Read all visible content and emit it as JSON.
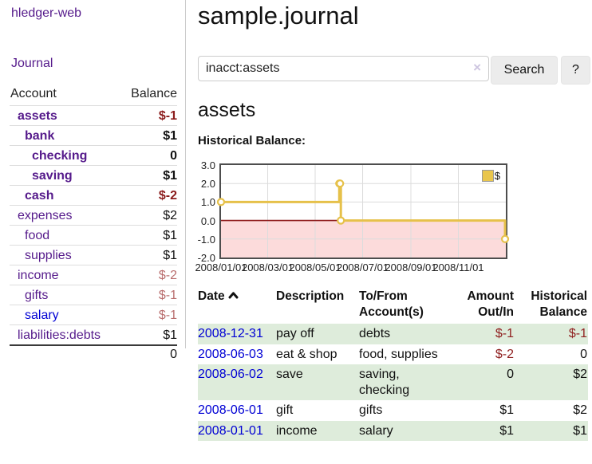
{
  "app": {
    "brand": "hledger-web",
    "nav_journal": "Journal"
  },
  "page": {
    "title": "sample.journal",
    "account_heading": "assets",
    "chart_heading": "Historical Balance:"
  },
  "search": {
    "value": "inacct:assets",
    "clear_icon": "×",
    "button_label": "Search",
    "help_label": "?"
  },
  "sidebar_table": {
    "headers": {
      "account": "Account",
      "balance": "Balance"
    },
    "rows": [
      {
        "account": "assets",
        "balance": "$-1",
        "indent": 1,
        "bold": true,
        "neg": "strong",
        "link": "purple"
      },
      {
        "account": "bank",
        "balance": "$1",
        "indent": 2,
        "bold": true,
        "neg": "none",
        "link": "purple"
      },
      {
        "account": "checking",
        "balance": "0",
        "indent": 3,
        "bold": true,
        "neg": "none",
        "link": "purple"
      },
      {
        "account": "saving",
        "balance": "$1",
        "indent": 3,
        "bold": true,
        "neg": "none",
        "link": "purple"
      },
      {
        "account": "cash",
        "balance": "$-2",
        "indent": 2,
        "bold": true,
        "neg": "strong",
        "link": "purple"
      },
      {
        "account": "expenses",
        "balance": "$2",
        "indent": 1,
        "bold": false,
        "neg": "none",
        "link": "purple"
      },
      {
        "account": "food",
        "balance": "$1",
        "indent": 2,
        "bold": false,
        "neg": "none",
        "link": "purple"
      },
      {
        "account": "supplies",
        "balance": "$1",
        "indent": 2,
        "bold": false,
        "neg": "none",
        "link": "purple"
      },
      {
        "account": "income",
        "balance": "$-2",
        "indent": 1,
        "bold": false,
        "neg": "soft",
        "link": "purple"
      },
      {
        "account": "gifts",
        "balance": "$-1",
        "indent": 2,
        "bold": false,
        "neg": "soft",
        "link": "purple"
      },
      {
        "account": "salary",
        "balance": "$-1",
        "indent": 2,
        "bold": false,
        "neg": "soft",
        "link": "blue"
      },
      {
        "account": "liabilities:debts",
        "balance": "$1",
        "indent": 1,
        "bold": false,
        "neg": "none",
        "link": "purple"
      }
    ],
    "total": "0"
  },
  "chart_data": {
    "type": "line",
    "step": true,
    "title": "Historical Balance",
    "legend": [
      {
        "label": "$",
        "color": "#e9c64d"
      }
    ],
    "legend_position": "top-right",
    "grid": true,
    "x_range": [
      "2008-01-01",
      "2009-01-01"
    ],
    "ylim": [
      -2,
      3
    ],
    "y_ticks": [
      {
        "value": 3,
        "label": "3.0"
      },
      {
        "value": 2,
        "label": "2.0"
      },
      {
        "value": 1,
        "label": "1.0"
      },
      {
        "value": 0,
        "label": "0.0"
      },
      {
        "value": -1,
        "label": "-1.0"
      },
      {
        "value": -2,
        "label": "-2.0"
      }
    ],
    "x_ticks": [
      {
        "date": "2008-01-01",
        "label": "2008/01/01"
      },
      {
        "date": "2008-03-01",
        "label": "2008/03/01"
      },
      {
        "date": "2008-05-01",
        "label": "2008/05/01"
      },
      {
        "date": "2008-07-01",
        "label": "2008/07/01"
      },
      {
        "date": "2008-09-01",
        "label": "2008/09/01"
      },
      {
        "date": "2008-11-01",
        "label": "2008/11/01"
      }
    ],
    "series": [
      {
        "name": "$",
        "color": "#e6c14a",
        "points": [
          {
            "date": "2008-01-01",
            "value": 1
          },
          {
            "date": "2008-06-01",
            "value": 2
          },
          {
            "date": "2008-06-02",
            "value": 2
          },
          {
            "date": "2008-06-03",
            "value": 0
          },
          {
            "date": "2008-12-31",
            "value": -1
          }
        ]
      }
    ],
    "negative_region_color": "#fcdbdb",
    "zero_line_color": "#8e1a1a",
    "grid_color": "#dcdcdc"
  },
  "register_table": {
    "headers": {
      "date": "Date",
      "description": "Description",
      "accounts": "To/From Account(s)",
      "amount": "Amount Out/In",
      "balance": "Historical Balance"
    },
    "sort": {
      "column": "date",
      "direction": "ascending"
    },
    "rows": [
      {
        "date": "2008-12-31",
        "description": "pay off",
        "accounts": "debts",
        "amount": "$-1",
        "balance": "$-1",
        "amount_neg": true,
        "balance_neg": true
      },
      {
        "date": "2008-06-03",
        "description": "eat & shop",
        "accounts": "food, supplies",
        "amount": "$-2",
        "balance": "0",
        "amount_neg": true,
        "balance_neg": false
      },
      {
        "date": "2008-06-02",
        "description": "save",
        "accounts": "saving, checking",
        "amount": "0",
        "balance": "$2",
        "amount_neg": false,
        "balance_neg": false
      },
      {
        "date": "2008-06-01",
        "description": "gift",
        "accounts": "gifts",
        "amount": "$1",
        "balance": "$2",
        "amount_neg": false,
        "balance_neg": false
      },
      {
        "date": "2008-01-01",
        "description": "income",
        "accounts": "salary",
        "amount": "$1",
        "balance": "$1",
        "amount_neg": false,
        "balance_neg": false
      }
    ]
  }
}
